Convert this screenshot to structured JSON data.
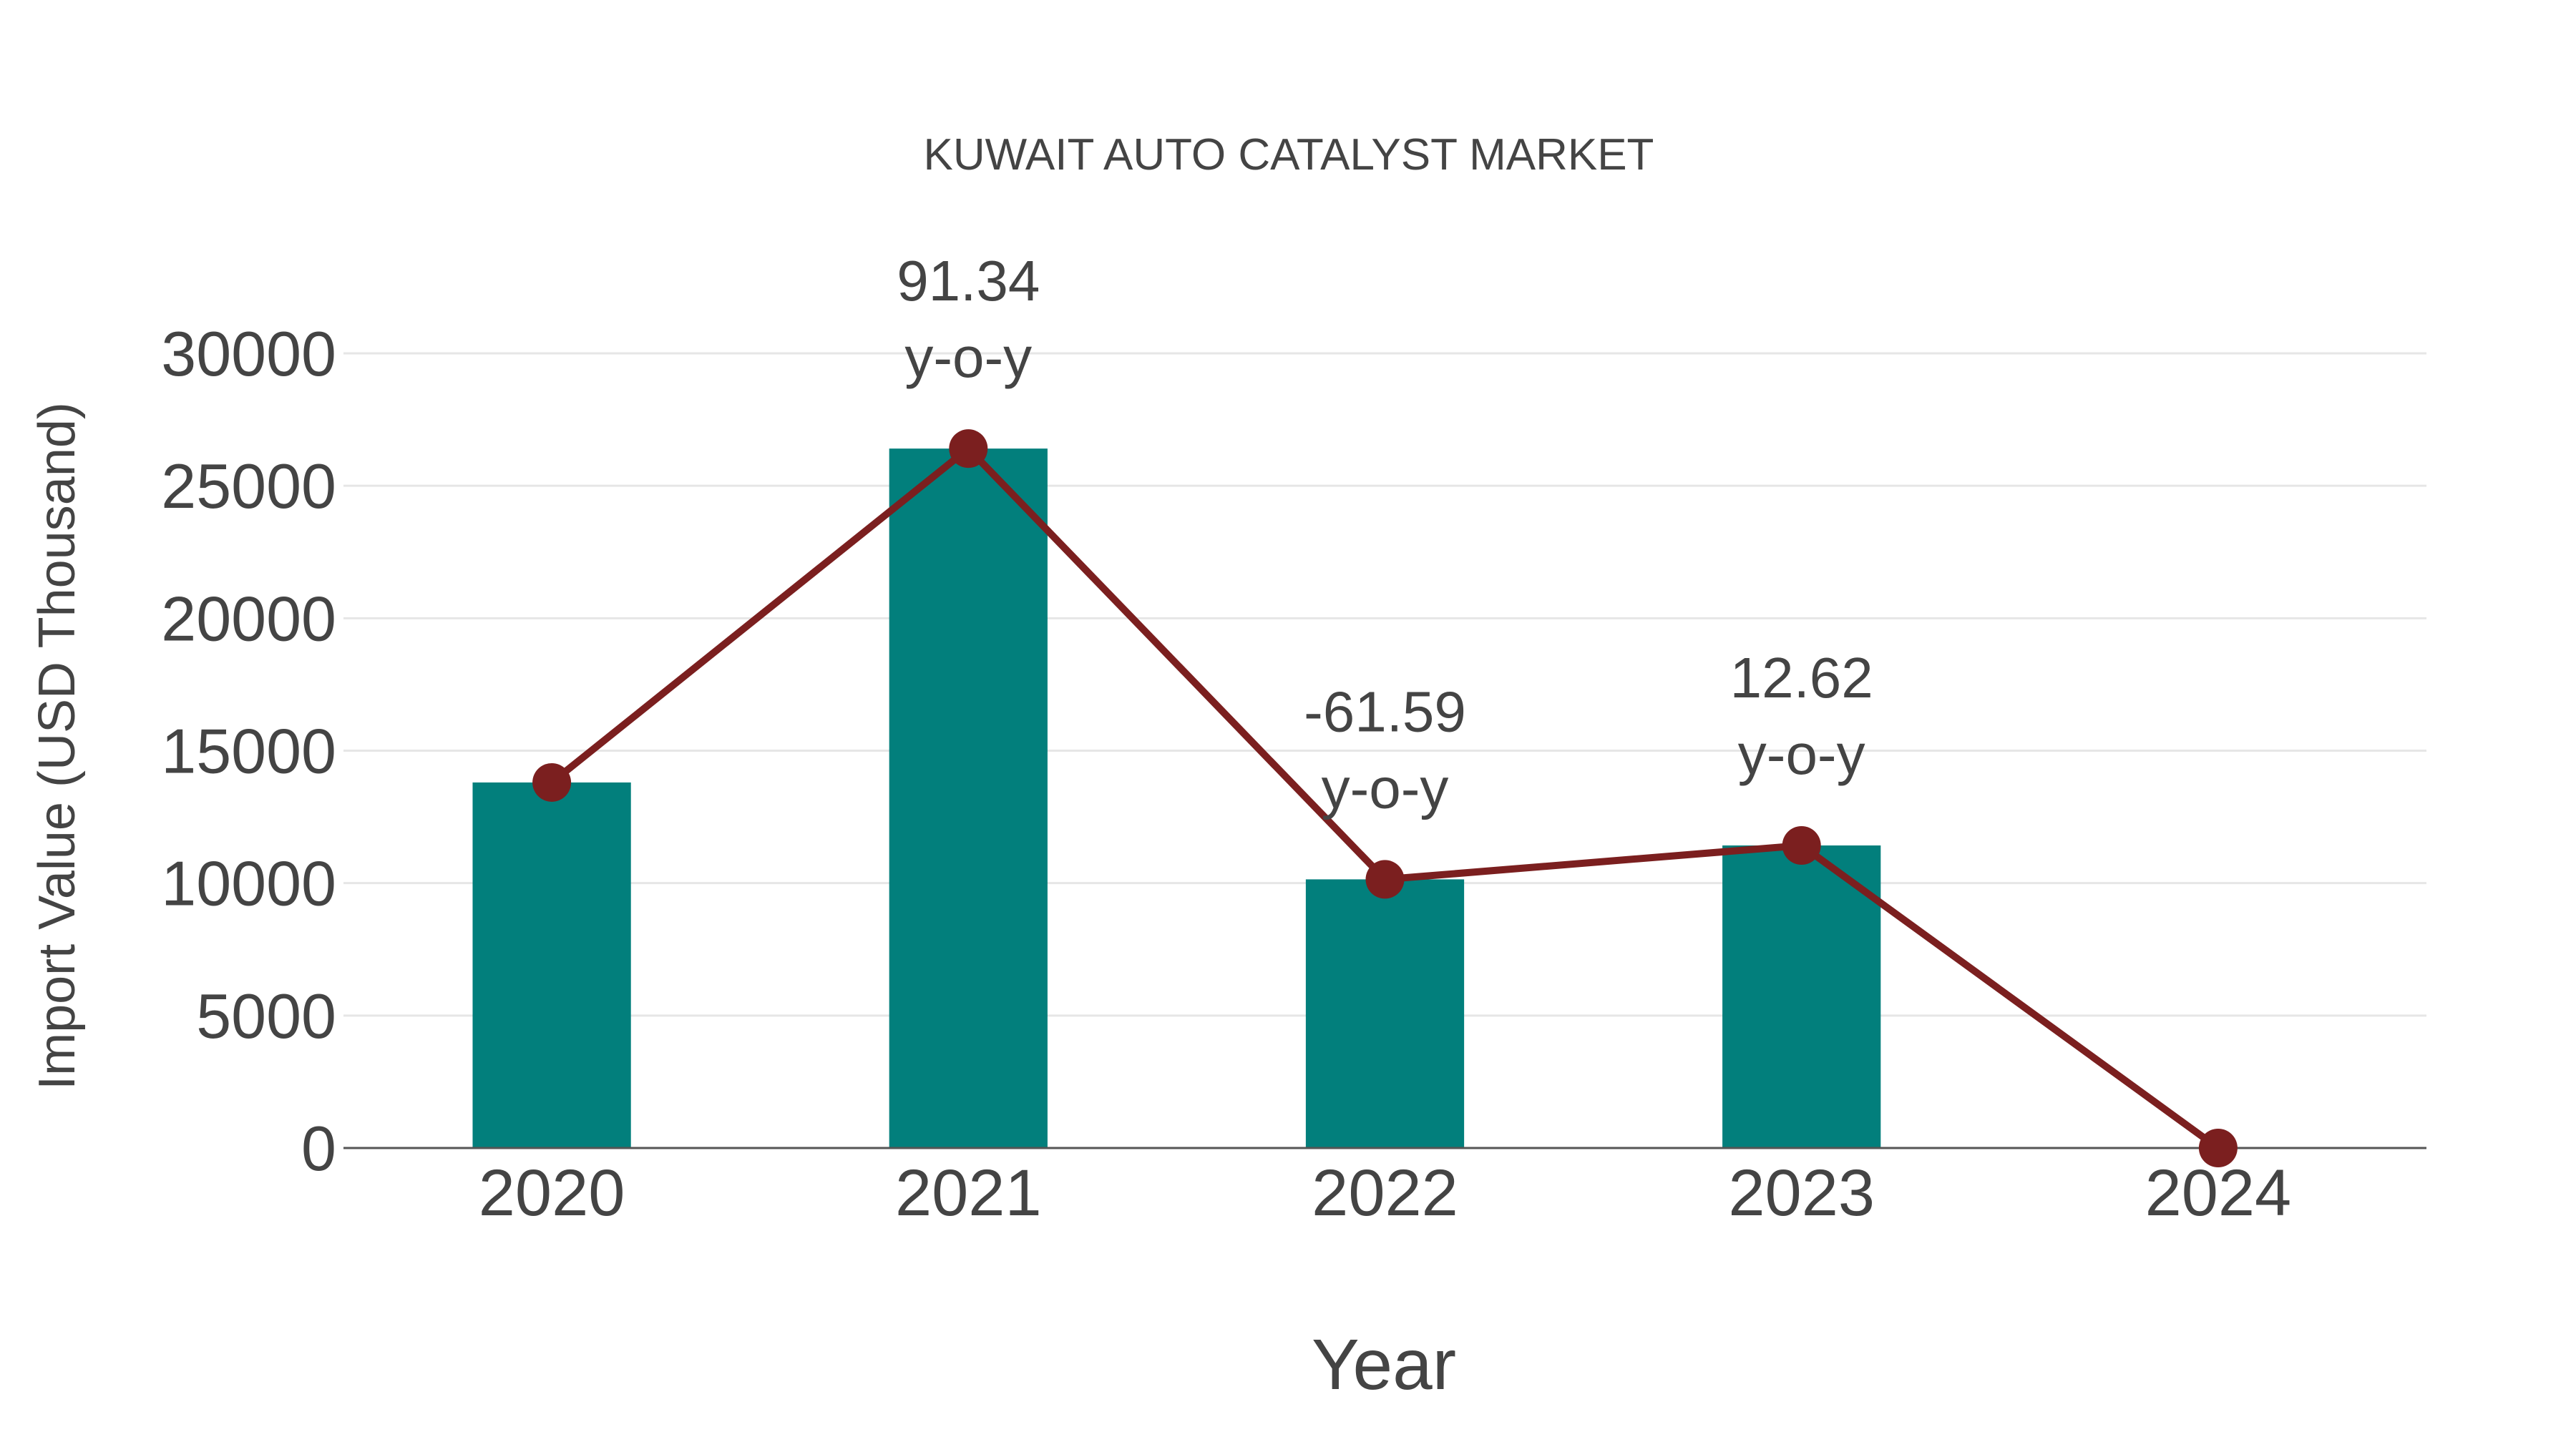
{
  "chart_data": {
    "type": "bar+line",
    "title": "KUWAIT AUTO CATALYST MARKET",
    "xlabel": "Year",
    "ylabel": "Import Value (USD Thousand)",
    "categories": [
      "2020",
      "2021",
      "2022",
      "2023",
      "2024"
    ],
    "series": [
      {
        "name": "Import Value",
        "type": "bar",
        "color": "#027f7c",
        "values": [
          13800,
          26405,
          10142,
          11422,
          0
        ]
      },
      {
        "name": "Trend",
        "type": "line",
        "color": "#7b1f1f",
        "values": [
          13800,
          26405,
          10142,
          11422,
          0
        ]
      }
    ],
    "annotations": [
      {
        "category": "2021",
        "value": "91.34",
        "suffix": "y-o-y"
      },
      {
        "category": "2022",
        "value": "-61.59",
        "suffix": "y-o-y"
      },
      {
        "category": "2023",
        "value": "12.62",
        "suffix": "y-o-y"
      }
    ],
    "yticks": [
      "0",
      "5000",
      "10000",
      "15000",
      "20000",
      "25000",
      "30000"
    ],
    "ylim": [
      0,
      30000
    ],
    "grid": true,
    "legend": "none"
  }
}
